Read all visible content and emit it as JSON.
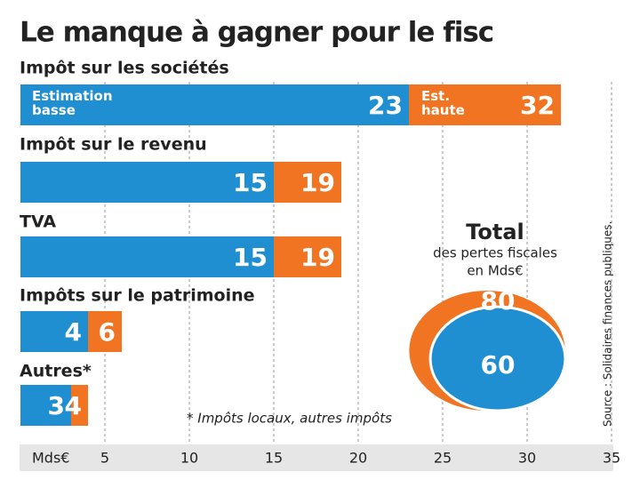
{
  "chart_data": {
    "type": "bar",
    "title": "Le manque à gagner pour le fisc",
    "categories": [
      "Impôt sur les sociétés",
      "Impôt sur le revenu",
      "TVA",
      "Impôts sur le patrimoine",
      "Autres*"
    ],
    "series": [
      {
        "name": "Estimation basse",
        "color": "#1f8fd1",
        "values": [
          23,
          15,
          15,
          4,
          3
        ]
      },
      {
        "name": "Est. haute",
        "color": "#f07421",
        "values": [
          32,
          19,
          19,
          6,
          4
        ]
      }
    ],
    "xlabel": "Mds€",
    "xlim": [
      0,
      35
    ],
    "xticks": [
      5,
      10,
      15,
      20,
      25,
      30,
      35
    ],
    "grid": true,
    "total": {
      "title": "Total",
      "lines": [
        "des pertes fiscales",
        "en Mds€"
      ],
      "values": [
        80,
        60
      ]
    },
    "footnote": "* Impôts locaux, autres impôts",
    "source": "Source : Solidaires finances publiques."
  }
}
